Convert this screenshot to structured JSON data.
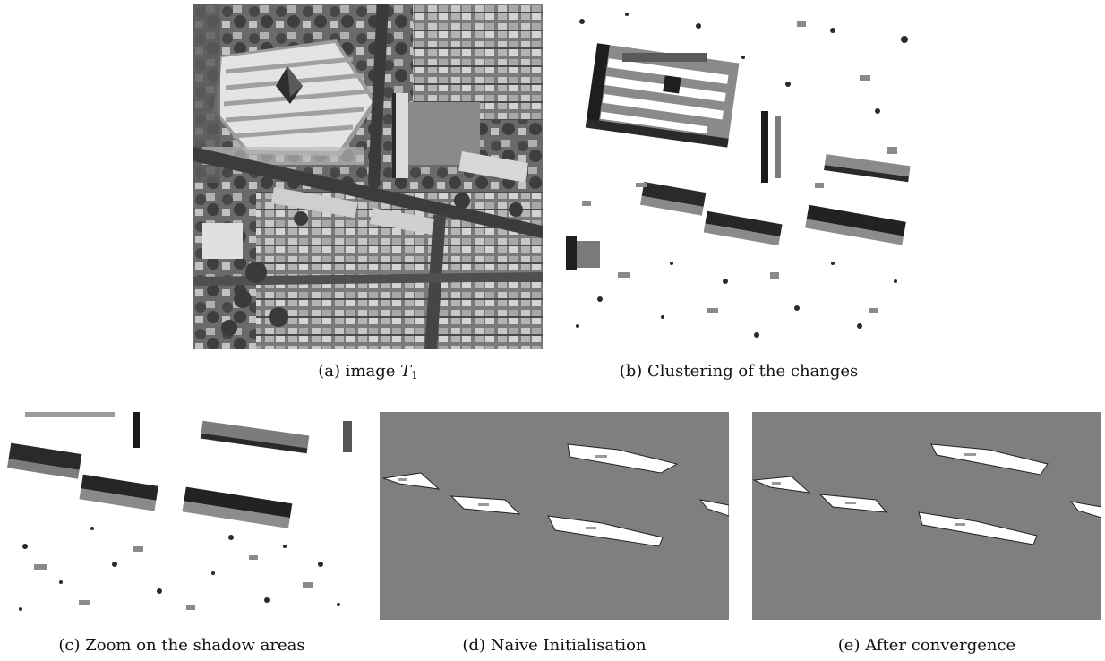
{
  "figure": {
    "panels": [
      {
        "id": "a",
        "caption_prefix": "(a) image ",
        "caption_var": "T",
        "caption_sub": "1",
        "kind": "aerial-grayscale-image"
      },
      {
        "id": "b",
        "caption": "(b) Clustering of the changes",
        "kind": "change-cluster-map"
      },
      {
        "id": "c",
        "caption": "(c) Zoom on the shadow areas",
        "kind": "shadow-zoom-map"
      },
      {
        "id": "d",
        "caption": "(d) Naive Initialisation",
        "kind": "segmentation-initial"
      },
      {
        "id": "e",
        "caption": "(e) After convergence",
        "kind": "segmentation-converged"
      }
    ],
    "colors": {
      "background_gray": "#7f7f7f",
      "shadow_dark": "#1a1a1a",
      "cluster_mid": "#5a5a5a",
      "cluster_light": "#9a9a9a"
    }
  }
}
